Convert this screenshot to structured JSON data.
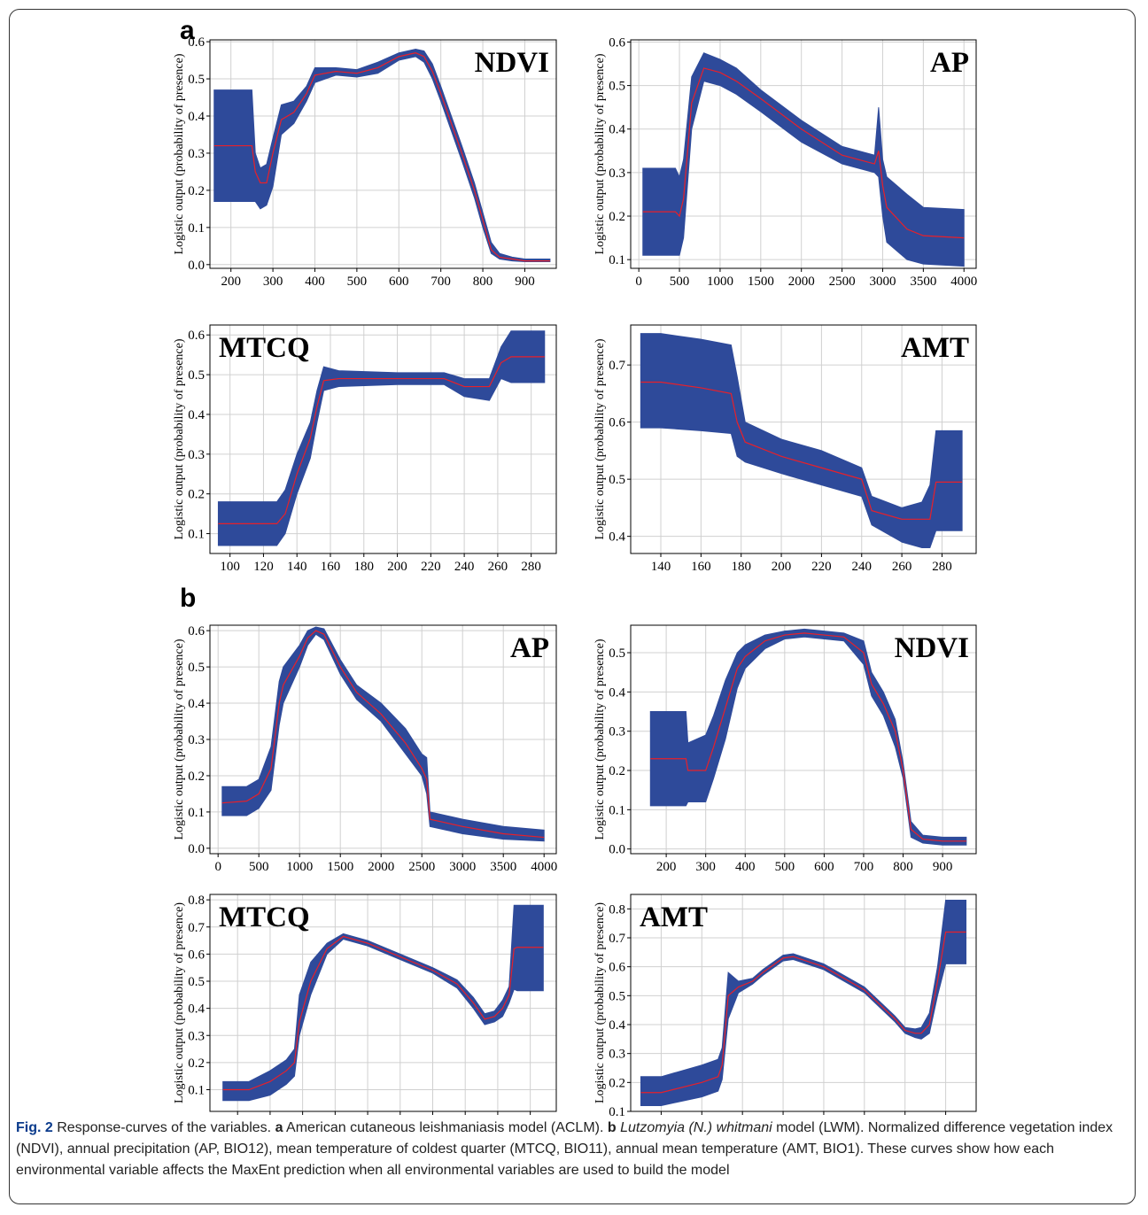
{
  "figure": {
    "panel_a_label": "a",
    "panel_b_label": "b",
    "caption": {
      "fig_label": "Fig. 2",
      "t1": " Response-curves of the variables. ",
      "a": "a",
      "t2": " American cutaneous leishmaniasis model (ACLM). ",
      "b": "b",
      "t3": " ",
      "species": "Lutzomyia (N.) whitmani",
      "t4": " model (LWM). Normalized difference vegetation index (NDVI), annual precipitation (AP, BIO12), mean temperature of coldest quarter (MTCQ, BIO11), annual mean temperature (AMT, BIO1). These curves show how each environmental variable affects the MaxEnt prediction when all environmental variables are used to build the model"
    }
  },
  "colors": {
    "band": "#2e4a9a",
    "line": "#e8202a",
    "grid": "#d0d0d0",
    "axis": "#000000"
  },
  "chart_data": [
    {
      "type": "line",
      "panel": "a",
      "title": "NDVI",
      "ylabel": "Logistic output (probability of presence)",
      "xlim": [
        150,
        975
      ],
      "ylim": [
        -0.01,
        0.605
      ],
      "xticks": [
        200,
        300,
        400,
        500,
        600,
        700,
        800,
        900
      ],
      "yticks": [
        0.0,
        0.1,
        0.2,
        0.3,
        0.4,
        0.5,
        0.6
      ],
      "x": [
        160,
        250,
        258,
        270,
        285,
        300,
        320,
        350,
        380,
        400,
        450,
        500,
        550,
        600,
        640,
        660,
        680,
        700,
        750,
        780,
        800,
        820,
        840,
        870,
        900,
        960
      ],
      "mean": [
        0.32,
        0.32,
        0.25,
        0.22,
        0.22,
        0.3,
        0.39,
        0.41,
        0.46,
        0.51,
        0.52,
        0.515,
        0.53,
        0.56,
        0.57,
        0.56,
        0.52,
        0.46,
        0.3,
        0.2,
        0.12,
        0.04,
        0.02,
        0.015,
        0.01,
        0.01
      ],
      "upper": [
        0.47,
        0.47,
        0.3,
        0.26,
        0.27,
        0.34,
        0.43,
        0.44,
        0.48,
        0.53,
        0.53,
        0.525,
        0.545,
        0.57,
        0.58,
        0.575,
        0.54,
        0.48,
        0.32,
        0.22,
        0.14,
        0.06,
        0.03,
        0.02,
        0.015,
        0.015
      ],
      "lower": [
        0.17,
        0.17,
        0.17,
        0.15,
        0.16,
        0.21,
        0.35,
        0.38,
        0.44,
        0.49,
        0.51,
        0.505,
        0.515,
        0.55,
        0.56,
        0.545,
        0.5,
        0.44,
        0.28,
        0.18,
        0.1,
        0.03,
        0.015,
        0.01,
        0.008,
        0.008
      ]
    },
    {
      "type": "line",
      "panel": "a",
      "title": "AP",
      "ylabel": "Logistic output (probability of presence)",
      "xlim": [
        -100,
        4150
      ],
      "ylim": [
        0.08,
        0.605
      ],
      "xticks": [
        0,
        500,
        1000,
        1500,
        2000,
        2500,
        3000,
        3500,
        4000
      ],
      "yticks": [
        0.1,
        0.2,
        0.3,
        0.4,
        0.5,
        0.6
      ],
      "x": [
        50,
        450,
        500,
        550,
        650,
        800,
        1000,
        1200,
        1500,
        2000,
        2500,
        2900,
        2950,
        3000,
        3050,
        3300,
        3500,
        4000
      ],
      "mean": [
        0.21,
        0.21,
        0.2,
        0.24,
        0.46,
        0.54,
        0.53,
        0.51,
        0.47,
        0.4,
        0.34,
        0.32,
        0.35,
        0.27,
        0.22,
        0.17,
        0.155,
        0.15
      ],
      "upper": [
        0.31,
        0.31,
        0.29,
        0.33,
        0.52,
        0.575,
        0.56,
        0.54,
        0.49,
        0.42,
        0.36,
        0.34,
        0.45,
        0.33,
        0.29,
        0.25,
        0.22,
        0.215
      ],
      "lower": [
        0.11,
        0.11,
        0.11,
        0.15,
        0.4,
        0.51,
        0.5,
        0.48,
        0.44,
        0.37,
        0.32,
        0.3,
        0.29,
        0.2,
        0.14,
        0.1,
        0.09,
        0.085
      ]
    },
    {
      "type": "line",
      "panel": "a",
      "title": "MTCQ",
      "ylabel": "Logistic output (probability of presence)",
      "xlim": [
        88,
        295
      ],
      "ylim": [
        0.05,
        0.625
      ],
      "xticks": [
        100,
        120,
        140,
        160,
        180,
        200,
        220,
        240,
        260,
        280
      ],
      "yticks": [
        0.1,
        0.2,
        0.3,
        0.4,
        0.5,
        0.6
      ],
      "x": [
        93,
        120,
        128,
        133,
        140,
        148,
        152,
        156,
        165,
        200,
        228,
        240,
        255,
        262,
        268,
        288
      ],
      "mean": [
        0.125,
        0.125,
        0.125,
        0.15,
        0.25,
        0.34,
        0.42,
        0.485,
        0.49,
        0.49,
        0.49,
        0.47,
        0.47,
        0.53,
        0.545,
        0.545
      ],
      "upper": [
        0.18,
        0.18,
        0.18,
        0.21,
        0.3,
        0.38,
        0.46,
        0.52,
        0.51,
        0.505,
        0.505,
        0.49,
        0.49,
        0.57,
        0.61,
        0.61
      ],
      "lower": [
        0.07,
        0.07,
        0.07,
        0.1,
        0.2,
        0.29,
        0.38,
        0.46,
        0.47,
        0.475,
        0.475,
        0.445,
        0.435,
        0.49,
        0.48,
        0.48
      ]
    },
    {
      "type": "line",
      "panel": "a",
      "title": "AMT",
      "ylabel": "Logistic output (probability of presence)",
      "xlim": [
        125,
        297
      ],
      "ylim": [
        0.37,
        0.77
      ],
      "xticks": [
        140,
        160,
        180,
        200,
        220,
        240,
        260,
        280
      ],
      "yticks": [
        0.4,
        0.5,
        0.6,
        0.7
      ],
      "x": [
        130,
        140,
        160,
        175,
        178,
        182,
        200,
        220,
        240,
        245,
        260,
        270,
        274,
        277,
        290
      ],
      "mean": [
        0.67,
        0.67,
        0.66,
        0.65,
        0.6,
        0.565,
        0.54,
        0.52,
        0.5,
        0.445,
        0.43,
        0.43,
        0.43,
        0.495,
        0.495
      ],
      "upper": [
        0.755,
        0.755,
        0.745,
        0.735,
        0.68,
        0.6,
        0.57,
        0.55,
        0.52,
        0.47,
        0.45,
        0.46,
        0.49,
        0.585,
        0.585
      ],
      "lower": [
        0.59,
        0.59,
        0.585,
        0.58,
        0.54,
        0.53,
        0.51,
        0.49,
        0.47,
        0.42,
        0.39,
        0.38,
        0.38,
        0.41,
        0.41
      ]
    },
    {
      "type": "line",
      "panel": "b",
      "title": "AP",
      "ylabel": "Logistic output (probability of presence)",
      "xlim": [
        -100,
        4150
      ],
      "ylim": [
        -0.015,
        0.615
      ],
      "xticks": [
        0,
        500,
        1000,
        1500,
        2000,
        2500,
        3000,
        3500,
        4000
      ],
      "yticks": [
        0.0,
        0.1,
        0.2,
        0.3,
        0.4,
        0.5,
        0.6
      ],
      "x": [
        50,
        350,
        500,
        650,
        750,
        800,
        900,
        1000,
        1100,
        1200,
        1300,
        1500,
        1700,
        2000,
        2300,
        2500,
        2560,
        2600,
        2800,
        3000,
        3500,
        4000
      ],
      "mean": [
        0.125,
        0.13,
        0.15,
        0.22,
        0.4,
        0.45,
        0.49,
        0.53,
        0.58,
        0.6,
        0.59,
        0.5,
        0.43,
        0.37,
        0.29,
        0.22,
        0.19,
        0.08,
        0.07,
        0.06,
        0.04,
        0.03
      ],
      "upper": [
        0.17,
        0.17,
        0.19,
        0.28,
        0.46,
        0.5,
        0.53,
        0.56,
        0.6,
        0.61,
        0.605,
        0.52,
        0.45,
        0.4,
        0.33,
        0.26,
        0.25,
        0.1,
        0.09,
        0.08,
        0.06,
        0.05
      ],
      "lower": [
        0.09,
        0.09,
        0.11,
        0.16,
        0.34,
        0.4,
        0.45,
        0.5,
        0.56,
        0.59,
        0.575,
        0.48,
        0.41,
        0.35,
        0.26,
        0.2,
        0.15,
        0.06,
        0.05,
        0.04,
        0.025,
        0.02
      ]
    },
    {
      "type": "line",
      "panel": "b",
      "title": "NDVI",
      "ylabel": "Logistic output (probability of presence)",
      "xlim": [
        110,
        985
      ],
      "ylim": [
        -0.012,
        0.57
      ],
      "xticks": [
        200,
        300,
        400,
        500,
        600,
        700,
        800,
        900
      ],
      "yticks": [
        0.0,
        0.1,
        0.2,
        0.3,
        0.4,
        0.5
      ],
      "x": [
        160,
        250,
        255,
        300,
        320,
        350,
        380,
        400,
        450,
        500,
        550,
        600,
        650,
        700,
        720,
        750,
        780,
        800,
        820,
        850,
        900,
        960
      ],
      "mean": [
        0.23,
        0.23,
        0.2,
        0.2,
        0.26,
        0.36,
        0.46,
        0.49,
        0.53,
        0.545,
        0.55,
        0.545,
        0.54,
        0.5,
        0.42,
        0.37,
        0.3,
        0.2,
        0.05,
        0.025,
        0.02,
        0.02
      ],
      "upper": [
        0.35,
        0.35,
        0.27,
        0.29,
        0.34,
        0.43,
        0.5,
        0.52,
        0.545,
        0.555,
        0.56,
        0.555,
        0.55,
        0.53,
        0.45,
        0.4,
        0.33,
        0.22,
        0.07,
        0.035,
        0.03,
        0.03
      ],
      "lower": [
        0.11,
        0.11,
        0.12,
        0.12,
        0.18,
        0.28,
        0.41,
        0.46,
        0.51,
        0.535,
        0.54,
        0.535,
        0.53,
        0.47,
        0.39,
        0.34,
        0.26,
        0.18,
        0.03,
        0.015,
        0.01,
        0.01
      ]
    },
    {
      "type": "line",
      "panel": "b",
      "title": "MTCQ",
      "ylabel": "Logistic output (probability of presence)",
      "xlim": [
        83,
        296
      ],
      "ylim": [
        0.02,
        0.82
      ],
      "xticks": [
        100,
        120,
        140,
        160,
        180,
        200,
        220,
        240,
        260,
        280
      ],
      "yticks": [
        0.1,
        0.2,
        0.3,
        0.4,
        0.5,
        0.6,
        0.7,
        0.8
      ],
      "x": [
        91,
        107,
        120,
        130,
        135,
        138,
        145,
        155,
        165,
        180,
        200,
        220,
        235,
        245,
        252,
        258,
        263,
        267,
        270,
        272,
        288
      ],
      "mean": [
        0.1,
        0.1,
        0.13,
        0.17,
        0.2,
        0.35,
        0.5,
        0.62,
        0.665,
        0.64,
        0.59,
        0.54,
        0.49,
        0.42,
        0.36,
        0.37,
        0.4,
        0.45,
        0.62,
        0.625,
        0.625
      ],
      "upper": [
        0.13,
        0.13,
        0.17,
        0.21,
        0.25,
        0.45,
        0.57,
        0.64,
        0.675,
        0.65,
        0.6,
        0.55,
        0.505,
        0.44,
        0.38,
        0.39,
        0.43,
        0.48,
        0.78,
        0.78,
        0.78
      ],
      "lower": [
        0.06,
        0.06,
        0.08,
        0.12,
        0.15,
        0.3,
        0.45,
        0.6,
        0.655,
        0.63,
        0.58,
        0.53,
        0.475,
        0.4,
        0.34,
        0.35,
        0.37,
        0.42,
        0.47,
        0.465,
        0.465
      ]
    },
    {
      "type": "line",
      "panel": "b",
      "title": "AMT",
      "ylabel": "Logistic output (probability of presence)",
      "xlim": [
        125,
        295
      ],
      "ylim": [
        0.1,
        0.85
      ],
      "xticks": [
        140,
        160,
        180,
        200,
        220,
        240,
        260,
        280
      ],
      "yticks": [
        0.1,
        0.2,
        0.3,
        0.4,
        0.5,
        0.6,
        0.7,
        0.8
      ],
      "x": [
        130,
        140,
        160,
        168,
        170,
        173,
        178,
        185,
        190,
        200,
        205,
        220,
        240,
        255,
        260,
        265,
        268,
        272,
        276,
        280,
        290
      ],
      "mean": [
        0.165,
        0.165,
        0.2,
        0.22,
        0.26,
        0.5,
        0.53,
        0.55,
        0.58,
        0.63,
        0.635,
        0.6,
        0.52,
        0.42,
        0.38,
        0.37,
        0.37,
        0.4,
        0.55,
        0.72,
        0.72
      ],
      "upper": [
        0.22,
        0.22,
        0.26,
        0.28,
        0.32,
        0.58,
        0.55,
        0.56,
        0.59,
        0.64,
        0.645,
        0.61,
        0.53,
        0.43,
        0.39,
        0.385,
        0.39,
        0.44,
        0.6,
        0.83,
        0.83
      ],
      "lower": [
        0.12,
        0.12,
        0.15,
        0.17,
        0.21,
        0.42,
        0.51,
        0.54,
        0.57,
        0.62,
        0.625,
        0.59,
        0.51,
        0.41,
        0.37,
        0.355,
        0.35,
        0.37,
        0.5,
        0.61,
        0.61
      ]
    }
  ]
}
